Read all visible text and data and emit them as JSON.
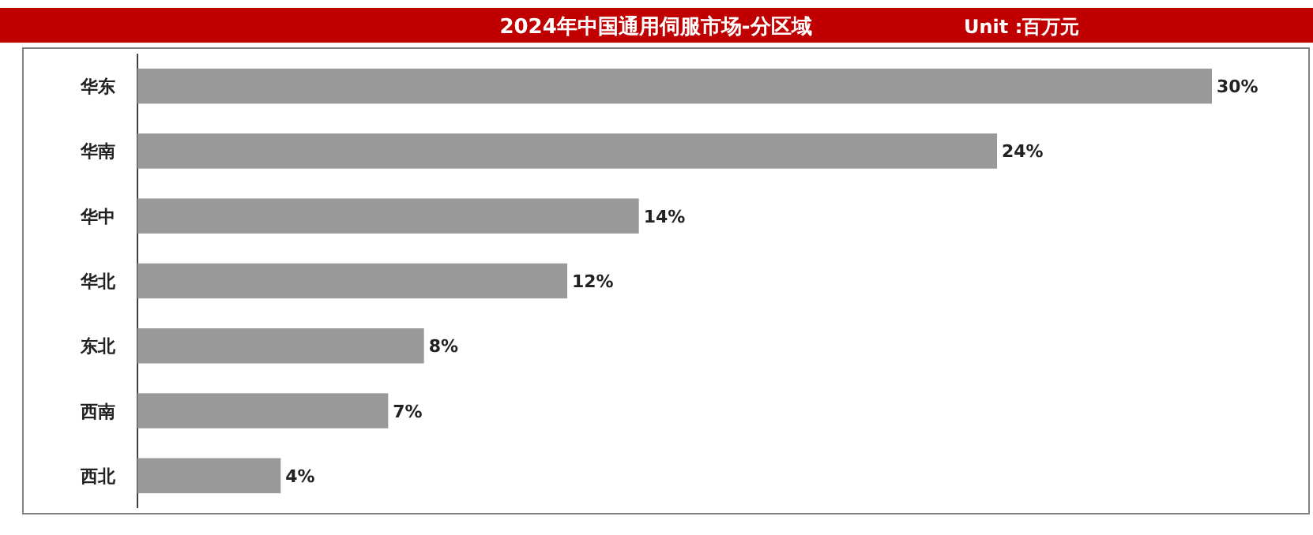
{
  "chart_data": {
    "type": "bar",
    "orientation": "horizontal",
    "title": "2024年中国通用伺服市场-分区域",
    "annotations": [
      "Unit :百万元"
    ],
    "categories": [
      "华东",
      "华南",
      "华中",
      "华北",
      "东北",
      "西南",
      "西北"
    ],
    "values": [
      30,
      24,
      14,
      12,
      8,
      7,
      4
    ],
    "value_labels": [
      "30%",
      "24%",
      "14%",
      "12%",
      "8%",
      "7%",
      "4%"
    ],
    "color": "#999999"
  }
}
